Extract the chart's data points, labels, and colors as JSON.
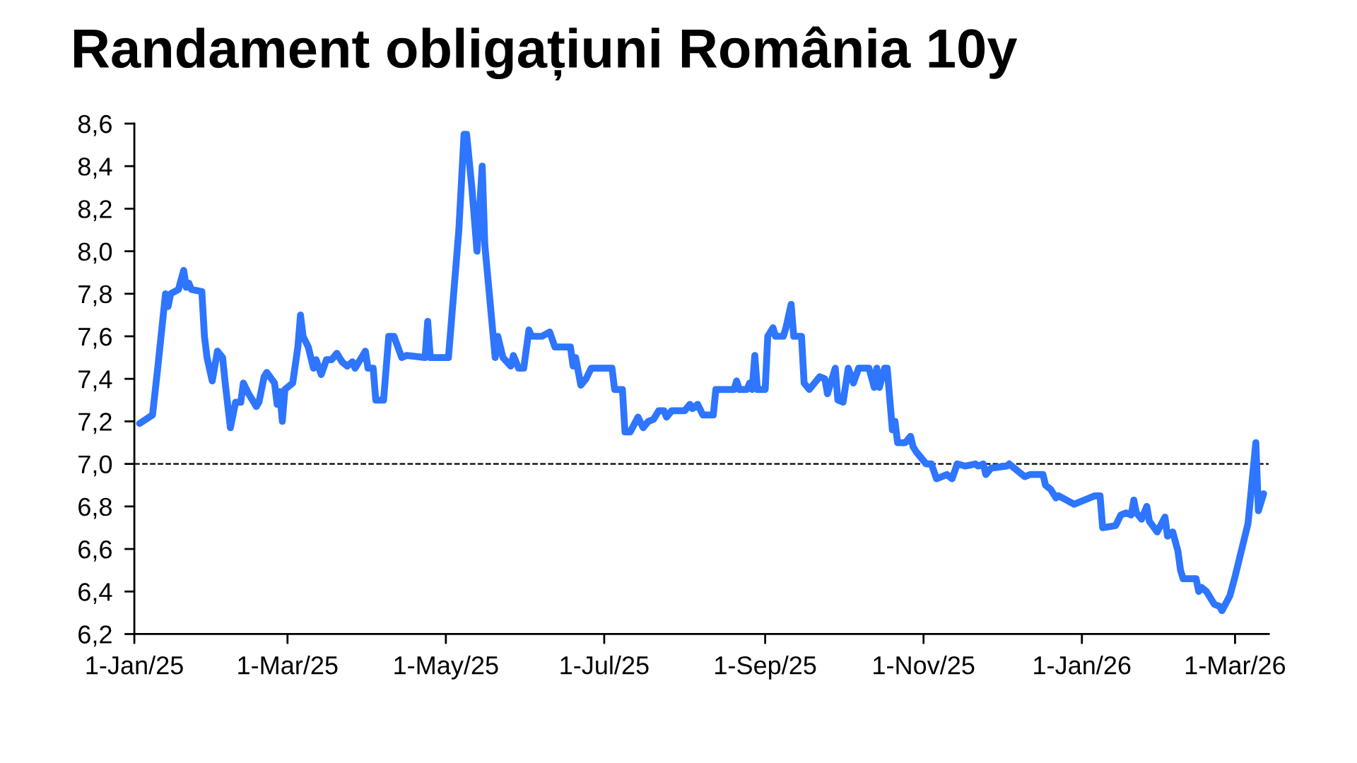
{
  "chart_data": {
    "type": "line",
    "title": "Randament obligațiuni România 10y",
    "x": [
      "2025-01-03",
      "2025-01-08",
      "2025-01-10",
      "2025-01-13",
      "2025-01-14",
      "2025-01-15",
      "2025-01-18",
      "2025-01-20",
      "2025-01-21",
      "2025-01-22",
      "2025-01-23",
      "2025-01-27",
      "2025-01-28",
      "2025-01-29",
      "2025-01-31",
      "2025-02-02",
      "2025-02-04",
      "2025-02-05",
      "2025-02-07",
      "2025-02-09",
      "2025-02-11",
      "2025-02-12",
      "2025-02-14",
      "2025-02-17",
      "2025-02-18",
      "2025-02-20",
      "2025-02-21",
      "2025-02-24",
      "2025-02-25",
      "2025-02-26",
      "2025-02-27",
      "2025-02-28",
      "2025-03-03",
      "2025-03-05",
      "2025-03-06",
      "2025-03-07",
      "2025-03-09",
      "2025-03-11",
      "2025-03-12",
      "2025-03-14",
      "2025-03-16",
      "2025-03-18",
      "2025-03-20",
      "2025-03-22",
      "2025-03-24",
      "2025-03-26",
      "2025-03-27",
      "2025-03-31",
      "2025-04-01",
      "2025-04-03",
      "2025-04-04",
      "2025-04-07",
      "2025-04-09",
      "2025-04-11",
      "2025-04-14",
      "2025-04-16",
      "2025-04-23",
      "2025-04-24",
      "2025-04-25",
      "2025-05-02",
      "2025-05-06",
      "2025-05-08",
      "2025-05-09",
      "2025-05-11",
      "2025-05-13",
      "2025-05-15",
      "2025-05-16",
      "2025-05-20",
      "2025-05-21",
      "2025-05-23",
      "2025-05-26",
      "2025-05-27",
      "2025-05-29",
      "2025-05-31",
      "2025-06-02",
      "2025-06-03",
      "2025-06-07",
      "2025-06-10",
      "2025-06-12",
      "2025-06-18",
      "2025-06-19",
      "2025-06-20",
      "2025-06-22",
      "2025-06-24",
      "2025-06-26",
      "2025-07-04",
      "2025-07-05",
      "2025-07-08",
      "2025-07-09",
      "2025-07-11",
      "2025-07-14",
      "2025-07-16",
      "2025-07-18",
      "2025-07-20",
      "2025-07-22",
      "2025-07-24",
      "2025-07-25",
      "2025-07-27",
      "2025-08-01",
      "2025-08-03",
      "2025-08-04",
      "2025-08-06",
      "2025-08-08",
      "2025-08-12",
      "2025-08-13",
      "2025-08-20",
      "2025-08-21",
      "2025-08-22",
      "2025-08-25",
      "2025-08-26",
      "2025-08-27",
      "2025-08-28",
      "2025-08-29",
      "2025-09-01",
      "2025-09-02",
      "2025-09-04",
      "2025-09-05",
      "2025-09-08",
      "2025-09-09",
      "2025-09-11",
      "2025-09-12",
      "2025-09-15",
      "2025-09-16",
      "2025-09-18",
      "2025-09-20",
      "2025-09-22",
      "2025-09-24",
      "2025-09-25",
      "2025-09-28",
      "2025-09-29",
      "2025-10-01",
      "2025-10-03",
      "2025-10-05",
      "2025-10-07",
      "2025-10-11",
      "2025-10-13",
      "2025-10-14",
      "2025-10-15",
      "2025-10-17",
      "2025-10-18",
      "2025-10-20",
      "2025-10-21",
      "2025-10-22",
      "2025-10-25",
      "2025-10-27",
      "2025-10-28",
      "2025-10-29",
      "2025-11-02",
      "2025-11-04",
      "2025-11-06",
      "2025-11-10",
      "2025-11-12",
      "2025-11-14",
      "2025-11-17",
      "2025-11-21",
      "2025-11-22",
      "2025-11-24",
      "2025-11-25",
      "2025-11-27",
      "2025-12-03",
      "2025-12-04",
      "2025-12-06",
      "2025-12-09",
      "2025-12-10",
      "2025-12-12",
      "2025-12-17",
      "2025-12-18",
      "2025-12-20",
      "2025-12-22",
      "2025-12-23",
      "2025-12-26",
      "2025-12-29",
      "2026-01-02",
      "2026-01-06",
      "2026-01-08",
      "2026-01-09",
      "2026-01-14",
      "2026-01-16",
      "2026-01-18",
      "2026-01-20",
      "2026-01-21",
      "2026-01-22",
      "2026-01-24",
      "2026-01-26",
      "2026-01-27",
      "2026-01-30",
      "2026-02-02",
      "2026-02-03",
      "2026-02-05",
      "2026-02-07",
      "2026-02-08",
      "2026-02-09",
      "2026-02-14",
      "2026-02-15",
      "2026-02-16",
      "2026-02-18",
      "2026-02-21",
      "2026-02-23",
      "2026-02-24",
      "2026-02-27",
      "2026-03-01",
      "2026-03-06",
      "2026-03-09",
      "2026-03-10",
      "2026-03-12"
    ],
    "series": [
      {
        "color": "#2e75ff",
        "values": [
          7.19,
          7.23,
          7.45,
          7.8,
          7.74,
          7.8,
          7.82,
          7.91,
          7.83,
          7.85,
          7.82,
          7.81,
          7.6,
          7.5,
          7.39,
          7.53,
          7.5,
          7.38,
          7.17,
          7.29,
          7.29,
          7.38,
          7.33,
          7.27,
          7.29,
          7.41,
          7.43,
          7.38,
          7.28,
          7.34,
          7.2,
          7.35,
          7.38,
          7.55,
          7.7,
          7.6,
          7.55,
          7.45,
          7.49,
          7.42,
          7.49,
          7.49,
          7.52,
          7.48,
          7.46,
          7.48,
          7.45,
          7.53,
          7.45,
          7.45,
          7.3,
          7.3,
          7.6,
          7.6,
          7.5,
          7.51,
          7.5,
          7.67,
          7.5,
          7.5,
          8.1,
          8.55,
          8.55,
          8.3,
          8.0,
          8.4,
          8.03,
          7.5,
          7.6,
          7.5,
          7.46,
          7.51,
          7.45,
          7.45,
          7.63,
          7.6,
          7.6,
          7.62,
          7.55,
          7.55,
          7.46,
          7.5,
          7.37,
          7.4,
          7.45,
          7.45,
          7.35,
          7.35,
          7.15,
          7.15,
          7.22,
          7.17,
          7.2,
          7.21,
          7.25,
          7.25,
          7.22,
          7.25,
          7.25,
          7.28,
          7.26,
          7.28,
          7.23,
          7.23,
          7.35,
          7.35,
          7.39,
          7.35,
          7.35,
          7.38,
          7.35,
          7.51,
          7.35,
          7.35,
          7.6,
          7.64,
          7.6,
          7.6,
          7.64,
          7.75,
          7.6,
          7.6,
          7.38,
          7.35,
          7.38,
          7.41,
          7.4,
          7.33,
          7.45,
          7.3,
          7.29,
          7.45,
          7.38,
          7.45,
          7.45,
          7.36,
          7.45,
          7.36,
          7.45,
          7.45,
          7.16,
          7.2,
          7.1,
          7.1,
          7.13,
          7.08,
          7.06,
          7.0,
          7.0,
          6.93,
          6.95,
          6.93,
          7.0,
          6.99,
          7.0,
          6.99,
          7.0,
          6.95,
          6.98,
          6.99,
          7.0,
          6.98,
          6.95,
          6.94,
          6.95,
          6.95,
          6.9,
          6.88,
          6.84,
          6.85,
          6.83,
          6.81,
          6.83,
          6.85,
          6.85,
          6.7,
          6.71,
          6.76,
          6.77,
          6.76,
          6.83,
          6.77,
          6.74,
          6.8,
          6.73,
          6.68,
          6.75,
          6.66,
          6.68,
          6.59,
          6.5,
          6.46,
          6.46,
          6.4,
          6.42,
          6.4,
          6.34,
          6.33,
          6.31,
          6.38,
          6.47,
          6.72,
          7.1,
          6.78,
          6.86
        ]
      }
    ],
    "xlim": [
      "2025-01-01",
      "2026-03-14"
    ],
    "xticks": [
      {
        "value": "2025-01-01",
        "label": "1-Jan/25"
      },
      {
        "value": "2025-03-01",
        "label": "1-Mar/25"
      },
      {
        "value": "2025-05-01",
        "label": "1-May/25"
      },
      {
        "value": "2025-07-01",
        "label": "1-Jul/25"
      },
      {
        "value": "2025-09-01",
        "label": "1-Sep/25"
      },
      {
        "value": "2025-11-01",
        "label": "1-Nov/25"
      },
      {
        "value": "2026-01-01",
        "label": "1-Jan/26"
      },
      {
        "value": "2026-03-01",
        "label": "1-Mar/26"
      }
    ],
    "ylim": [
      6.2,
      8.6
    ],
    "yticks": [
      {
        "value": 6.2,
        "label": "6,2"
      },
      {
        "value": 6.4,
        "label": "6,4"
      },
      {
        "value": 6.6,
        "label": "6,6"
      },
      {
        "value": 6.8,
        "label": "6,8"
      },
      {
        "value": 7.0,
        "label": "7,0"
      },
      {
        "value": 7.2,
        "label": "7,2"
      },
      {
        "value": 7.4,
        "label": "7,4"
      },
      {
        "value": 7.6,
        "label": "7,6"
      },
      {
        "value": 7.8,
        "label": "7,8"
      },
      {
        "value": 8.0,
        "label": "8,0"
      },
      {
        "value": 8.2,
        "label": "8,2"
      },
      {
        "value": 8.4,
        "label": "8,4"
      },
      {
        "value": 8.6,
        "label": "8,6"
      }
    ],
    "ref_lines": [
      {
        "axis": "y",
        "value": 7.0,
        "color": "#000000",
        "line_style": "dashed"
      }
    ],
    "grid": false,
    "legend": false,
    "marker": "none",
    "line_style": "solid"
  }
}
